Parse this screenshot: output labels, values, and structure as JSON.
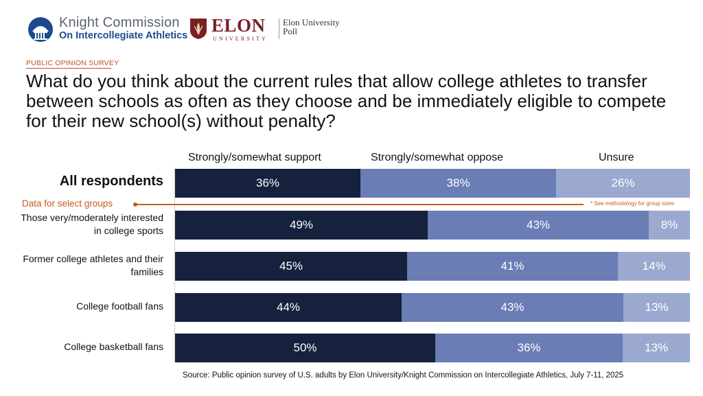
{
  "brand": {
    "kc_name": "Knight Commission",
    "kc_sub": "On Intercollegiate Athletics",
    "elon_word": "ELON",
    "elon_univ": "UNIVERSITY",
    "elon_poll_line1": "Elon University",
    "elon_poll_line2": "Poll"
  },
  "header": {
    "tag": "PUBLIC OPINION SURVEY",
    "question": "What do you think about the current rules that allow college athletes to transfer between schools as often as they choose and be immediately eligible to compete for their new school(s) without penalty?"
  },
  "groups": {
    "label": "Data for select groups",
    "note": "* See methodology for group sizes"
  },
  "source": "Source: Public opinion survey of U.S. adults by Elon University/Knight Commission on Intercollegiate Athletics, July 7-11, 2025",
  "chart_data": {
    "type": "bar",
    "orientation": "horizontal",
    "stacked": true,
    "title": "What do you think about the current rules that allow college athletes to transfer between schools as often as they choose and be immediately eligible to compete for their new school(s) without penalty?",
    "unit": "%",
    "xlim": [
      0,
      100
    ],
    "categories": [
      "All respondents",
      "Those very/moderately interested in college sports",
      "Former college athletes and their families",
      "College football fans",
      "College basketball fans"
    ],
    "series": [
      {
        "name": "Strongly/somewhat support",
        "color": "#15213d",
        "values": [
          36,
          49,
          45,
          44,
          50
        ]
      },
      {
        "name": "Strongly/somewhat oppose",
        "color": "#6a7db5",
        "values": [
          38,
          43,
          41,
          43,
          36
        ]
      },
      {
        "name": "Unsure",
        "color": "#9ba9d0",
        "values": [
          26,
          8,
          14,
          13,
          13
        ]
      }
    ]
  }
}
